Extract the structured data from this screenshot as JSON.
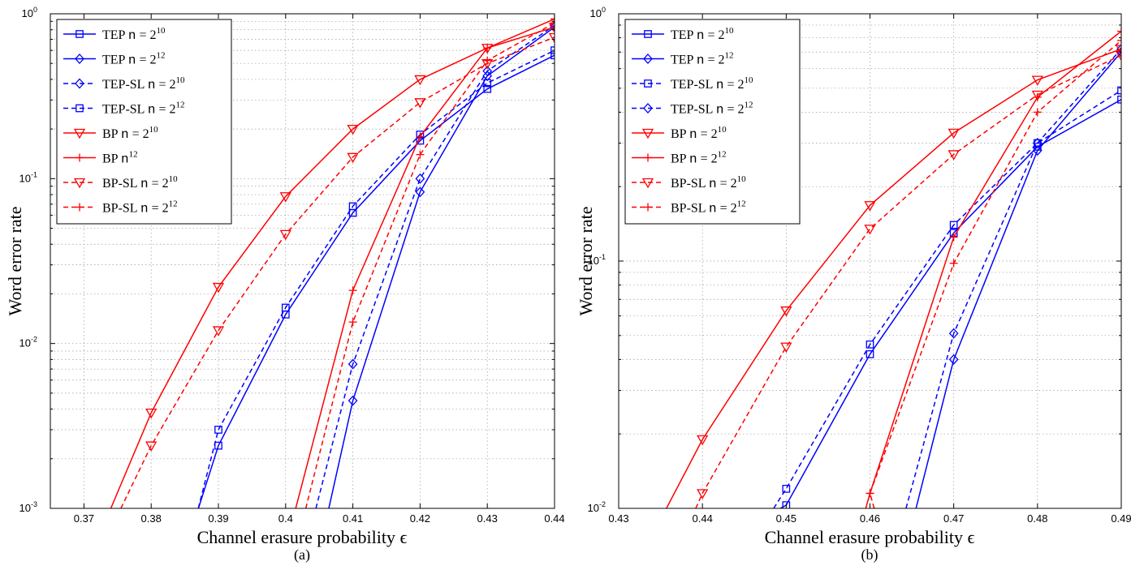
{
  "chart_data": [
    {
      "type": "line",
      "caption": "(a)",
      "xlabel": "Channel erasure probability ϵ",
      "ylabel": "Word error rate",
      "xlim": [
        0.365,
        0.44
      ],
      "ylim_log10": [
        -3,
        0
      ],
      "y_scale": "log",
      "grid": true,
      "legend_placement": "top-left",
      "x_ticks": [
        "0.37",
        "0.38",
        "0.39",
        "0.4",
        "0.41",
        "0.42",
        "0.43",
        "0.44"
      ],
      "x_tick_values": [
        0.37,
        0.38,
        0.39,
        0.4,
        0.41,
        0.42,
        0.43,
        0.44
      ],
      "y_ticks": [
        {
          "base": "10",
          "exp": "-3",
          "value": -3
        },
        {
          "base": "10",
          "exp": "-2",
          "value": -2
        },
        {
          "base": "10",
          "exp": "-1",
          "value": -1
        },
        {
          "base": "10",
          "exp": "0",
          "value": 0
        }
      ],
      "legend": [
        {
          "prefix": "TEP",
          "mono": "n",
          "eq": " = ",
          "base": "2",
          "exp": "10"
        },
        {
          "prefix": "TEP",
          "mono": "n",
          "eq": " = ",
          "base": "2",
          "exp": "12"
        },
        {
          "prefix": "TEP-SL",
          "mono": "n",
          "eq": " = ",
          "base": "2",
          "exp": "10"
        },
        {
          "prefix": "TEP-SL",
          "mono": "n",
          "eq": " = ",
          "base": "2",
          "exp": "12"
        },
        {
          "prefix": "BP",
          "mono": "n",
          "eq": " = ",
          "base": "2",
          "exp": "10"
        },
        {
          "prefix": "BP",
          "mono": "n",
          "eq": "",
          "base": "",
          "exp": "12"
        },
        {
          "prefix": "BP-SL",
          "mono": "n",
          "eq": " = ",
          "base": "2",
          "exp": "10"
        },
        {
          "prefix": "BP-SL",
          "mono": "n",
          "eq": " = ",
          "base": "2",
          "exp": "12"
        }
      ],
      "series": [
        {
          "color": "#0000ff",
          "dash": false,
          "marker": "square",
          "x": [
            0.39,
            0.4,
            0.41,
            0.42,
            0.43,
            0.44
          ],
          "y": [
            0.0024,
            0.015,
            0.062,
            0.17,
            0.35,
            0.56
          ],
          "lead": [
            0.385,
            0.00055
          ]
        },
        {
          "color": "#0000ff",
          "dash": false,
          "marker": "diamond",
          "x": [
            0.41,
            0.42,
            0.43,
            0.44
          ],
          "y": [
            0.0045,
            0.083,
            0.42,
            0.83
          ],
          "lead": [
            0.405,
            0.00055
          ]
        },
        {
          "color": "#0000ff",
          "dash": true,
          "marker": "diamond",
          "x": [
            0.41,
            0.42,
            0.43,
            0.44
          ],
          "y": [
            0.0075,
            0.1,
            0.45,
            0.85
          ],
          "lead": [
            0.4045,
            0.001
          ]
        },
        {
          "color": "#0000ff",
          "dash": true,
          "marker": "square",
          "x": [
            0.39,
            0.4,
            0.41,
            0.42,
            0.43,
            0.44
          ],
          "y": [
            0.003,
            0.0165,
            0.068,
            0.185,
            0.38,
            0.6
          ],
          "lead": [
            0.387,
            0.001
          ]
        },
        {
          "color": "#ff0000",
          "dash": false,
          "marker": "triangle",
          "x": [
            0.38,
            0.39,
            0.4,
            0.41,
            0.42,
            0.43,
            0.44
          ],
          "y": [
            0.0038,
            0.022,
            0.078,
            0.2,
            0.4,
            0.62,
            0.83
          ],
          "lead": [
            0.374,
            0.001
          ]
        },
        {
          "color": "#ff0000",
          "dash": false,
          "marker": "plus",
          "x": [
            0.41,
            0.42,
            0.43,
            0.44
          ],
          "y": [
            0.021,
            0.18,
            0.62,
            0.93
          ],
          "lead": [
            0.4015,
            0.001
          ]
        },
        {
          "color": "#ff0000",
          "dash": true,
          "marker": "triangle",
          "x": [
            0.38,
            0.39,
            0.4,
            0.41,
            0.42,
            0.43,
            0.44
          ],
          "y": [
            0.0024,
            0.012,
            0.046,
            0.135,
            0.29,
            0.5,
            0.72
          ],
          "lead": [
            0.3755,
            0.001
          ]
        },
        {
          "color": "#ff0000",
          "dash": true,
          "marker": "plus",
          "x": [
            0.41,
            0.42,
            0.43,
            0.44
          ],
          "y": [
            0.0135,
            0.14,
            0.52,
            0.88
          ],
          "lead": [
            0.403,
            0.001
          ]
        }
      ]
    },
    {
      "type": "line",
      "caption": "(b)",
      "xlabel": "Channel erasure probability ϵ",
      "ylabel": "Word error rate",
      "xlim": [
        0.43,
        0.49
      ],
      "ylim_log10": [
        -2,
        0
      ],
      "y_scale": "log",
      "grid": true,
      "legend_placement": "top-left",
      "x_ticks": [
        "0.43",
        "0.44",
        "0.45",
        "0.46",
        "0.47",
        "0.48",
        "0.49"
      ],
      "x_tick_values": [
        0.43,
        0.44,
        0.45,
        0.46,
        0.47,
        0.48,
        0.49
      ],
      "y_ticks": [
        {
          "base": "10",
          "exp": "-2",
          "value": -2
        },
        {
          "base": "10",
          "exp": "-1",
          "value": -1
        },
        {
          "base": "10",
          "exp": "0",
          "value": 0
        }
      ],
      "legend": [
        {
          "prefix": "TEP",
          "mono": "n",
          "eq": " = ",
          "base": "2",
          "exp": "10"
        },
        {
          "prefix": "TEP",
          "mono": "n",
          "eq": " = ",
          "base": "2",
          "exp": "12"
        },
        {
          "prefix": "TEP-SL",
          "mono": "n",
          "eq": " = ",
          "base": "2",
          "exp": "10"
        },
        {
          "prefix": "TEP-SL",
          "mono": "n",
          "eq": " = ",
          "base": "2",
          "exp": "12"
        },
        {
          "prefix": "BP",
          "mono": "n",
          "eq": " = ",
          "base": "2",
          "exp": "10"
        },
        {
          "prefix": "BP",
          "mono": "n",
          "eq": " = ",
          "base": "2",
          "exp": "12"
        },
        {
          "prefix": "BP-SL",
          "mono": "n",
          "eq": " = ",
          "base": "2",
          "exp": "10"
        },
        {
          "prefix": "BP-SL",
          "mono": "n",
          "eq": " = ",
          "base": "2",
          "exp": "12"
        }
      ],
      "series": [
        {
          "color": "#0000ff",
          "dash": false,
          "marker": "square",
          "x": [
            0.45,
            0.46,
            0.47,
            0.48,
            0.49
          ],
          "y": [
            0.0103,
            0.042,
            0.13,
            0.29,
            0.45
          ],
          "lead": [
            0.4493,
            0.01
          ]
        },
        {
          "color": "#0000ff",
          "dash": false,
          "marker": "diamond",
          "x": [
            0.47,
            0.48,
            0.49
          ],
          "y": [
            0.04,
            0.28,
            0.7
          ],
          "lead": [
            0.4655,
            0.01
          ]
        },
        {
          "color": "#0000ff",
          "dash": true,
          "marker": "square",
          "x": [
            0.45,
            0.46,
            0.47,
            0.48,
            0.49
          ],
          "y": [
            0.012,
            0.046,
            0.14,
            0.3,
            0.49
          ],
          "lead": [
            0.4485,
            0.01
          ]
        },
        {
          "color": "#0000ff",
          "dash": true,
          "marker": "diamond",
          "x": [
            0.47,
            0.48,
            0.49
          ],
          "y": [
            0.051,
            0.3,
            0.72
          ],
          "lead": [
            0.4643,
            0.01
          ]
        },
        {
          "color": "#ff0000",
          "dash": false,
          "marker": "triangle",
          "x": [
            0.44,
            0.45,
            0.46,
            0.47,
            0.48,
            0.49
          ],
          "y": [
            0.019,
            0.063,
            0.168,
            0.33,
            0.54,
            0.72
          ],
          "lead": [
            0.4357,
            0.01
          ]
        },
        {
          "color": "#ff0000",
          "dash": false,
          "marker": "plus",
          "x": [
            0.46,
            0.47,
            0.48,
            0.49
          ],
          "y": [
            0.0115,
            0.125,
            0.46,
            0.85
          ],
          "lead": [
            0.4595,
            0.01
          ]
        },
        {
          "color": "#ff0000",
          "dash": true,
          "marker": "triangle",
          "x": [
            0.44,
            0.45,
            0.46,
            0.47,
            0.48,
            0.49
          ],
          "y": [
            0.0115,
            0.045,
            0.135,
            0.27,
            0.47,
            0.68
          ],
          "lead": [
            0.4392,
            0.01
          ]
        },
        {
          "color": "#ff0000",
          "dash": true,
          "marker": "plus",
          "x": [
            0.46,
            0.47,
            0.48,
            0.49
          ],
          "y": [
            0.0115,
            0.098,
            0.4,
            0.78
          ],
          "lead": [
            0.4605,
            0.01
          ]
        }
      ]
    }
  ]
}
